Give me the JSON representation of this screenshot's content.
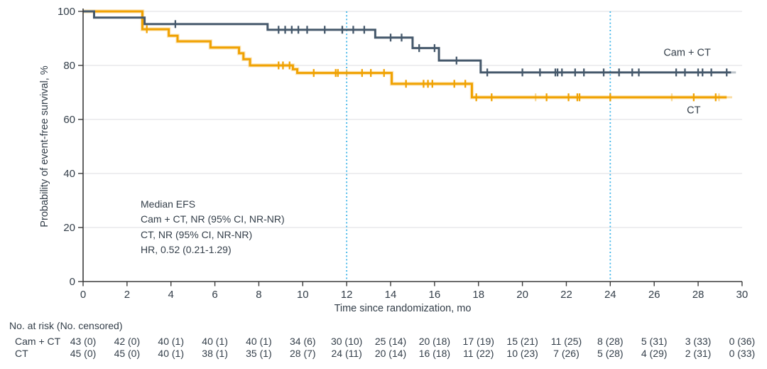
{
  "chart_data": {
    "type": "line",
    "variant": "kaplan_meier_step",
    "title": "",
    "xlabel": "Time since randomization, mo",
    "ylabel": "Probability of event-free survival, %",
    "xlim": [
      0,
      30
    ],
    "ylim": [
      0,
      100
    ],
    "xticks": [
      0,
      2,
      4,
      6,
      8,
      10,
      12,
      14,
      16,
      18,
      20,
      22,
      24,
      26,
      28,
      30
    ],
    "yticks": [
      0,
      20,
      40,
      60,
      80,
      100
    ],
    "grid": "horizontal",
    "reference_vlines": {
      "x": [
        12,
        24
      ],
      "style": "dotted",
      "color": "#3FB5E9"
    },
    "annotation": [
      "Median EFS",
      "Cam + CT, NR (95% CI, NR-NR)",
      "CT, NR (95% CI, NR-NR)",
      "HR, 0.52 (0.21-1.29)"
    ],
    "series": [
      {
        "name": "Cam + CT",
        "color": "#45586B",
        "halo": "",
        "label_pos": [
          27.5,
          83.5
        ],
        "steps": [
          [
            0,
            100
          ],
          [
            0.5,
            97.7
          ],
          [
            2.8,
            95.3
          ],
          [
            8.4,
            93.2
          ],
          [
            13.3,
            90.3
          ],
          [
            15.0,
            86.4
          ],
          [
            16.2,
            81.8
          ],
          [
            18.1,
            77.4
          ],
          [
            29.5,
            77.4
          ]
        ],
        "censors": [
          [
            4.2,
            95.3
          ],
          [
            8.9,
            93.2
          ],
          [
            9.2,
            93.2
          ],
          [
            9.5,
            93.2
          ],
          [
            9.8,
            93.2
          ],
          [
            10.2,
            93.2
          ],
          [
            11.0,
            93.2
          ],
          [
            11.8,
            93.2
          ],
          [
            12.3,
            93.2
          ],
          [
            12.8,
            93.2
          ],
          [
            14.0,
            90.3
          ],
          [
            14.5,
            90.3
          ],
          [
            15.3,
            86.4
          ],
          [
            16.0,
            86.4
          ],
          [
            17.0,
            81.8
          ],
          [
            18.4,
            77.4
          ],
          [
            20.0,
            77.4
          ],
          [
            20.8,
            77.4
          ],
          [
            21.5,
            77.4
          ],
          [
            21.6,
            77.4
          ],
          [
            21.8,
            77.4
          ],
          [
            22.4,
            77.4
          ],
          [
            22.8,
            77.4
          ],
          [
            23.7,
            77.4
          ],
          [
            24.4,
            77.4
          ],
          [
            25.0,
            77.4
          ],
          [
            25.3,
            77.4
          ],
          [
            27.0,
            77.4
          ],
          [
            27.4,
            77.4
          ],
          [
            28.0,
            77.4
          ],
          [
            28.2,
            77.4
          ],
          [
            28.6,
            77.4
          ],
          [
            29.3,
            77.4
          ]
        ],
        "faint_censors": [],
        "faint_tail": [
          29.5,
          29.72
        ]
      },
      {
        "name": "CT",
        "color": "#F0A202",
        "halo": "#F8C96E",
        "label_pos": [
          27.8,
          62.3
        ],
        "steps": [
          [
            0,
            100
          ],
          [
            2.7,
            93.4
          ],
          [
            3.9,
            91.0
          ],
          [
            4.3,
            88.9
          ],
          [
            5.8,
            86.6
          ],
          [
            7.1,
            84.5
          ],
          [
            7.3,
            82.3
          ],
          [
            7.6,
            80.0
          ],
          [
            9.55,
            78.6
          ],
          [
            9.75,
            77.2
          ],
          [
            14.05,
            73.2
          ],
          [
            17.7,
            68.2
          ],
          [
            29.3,
            68.2
          ]
        ],
        "censors": [
          [
            2.9,
            93.4
          ],
          [
            8.9,
            80.0
          ],
          [
            9.1,
            80.0
          ],
          [
            9.4,
            80.0
          ],
          [
            10.5,
            77.2
          ],
          [
            11.5,
            77.2
          ],
          [
            11.6,
            77.2
          ],
          [
            12.7,
            77.2
          ],
          [
            13.1,
            77.2
          ],
          [
            13.7,
            77.2
          ],
          [
            14.7,
            73.2
          ],
          [
            15.5,
            73.2
          ],
          [
            15.7,
            73.2
          ],
          [
            15.9,
            73.2
          ],
          [
            16.9,
            73.2
          ],
          [
            17.4,
            73.2
          ],
          [
            17.9,
            68.2
          ],
          [
            18.6,
            68.2
          ],
          [
            21.1,
            68.2
          ],
          [
            22.1,
            68.2
          ],
          [
            22.5,
            68.2
          ],
          [
            22.6,
            68.2
          ],
          [
            24.0,
            68.2
          ],
          [
            27.8,
            68.2
          ],
          [
            28.8,
            68.2
          ]
        ],
        "faint_censors": [
          [
            12.0,
            77.2
          ],
          [
            20.6,
            68.2
          ],
          [
            26.8,
            68.2
          ],
          [
            28.95,
            68.2
          ]
        ],
        "faint_tail": [
          29.3,
          29.55
        ]
      }
    ]
  },
  "risk_table": {
    "header": "No. at risk (No. censored)",
    "time_points": [
      0,
      2,
      4,
      6,
      8,
      10,
      12,
      14,
      16,
      18,
      20,
      22,
      24,
      26,
      28,
      30
    ],
    "rows": [
      {
        "name": "Cam + CT",
        "values": [
          "43 (0)",
          "42 (0)",
          "40 (1)",
          "40 (1)",
          "40 (1)",
          "34 (6)",
          "30 (10)",
          "25 (14)",
          "20 (18)",
          "17 (19)",
          "15 (21)",
          "11 (25)",
          "8 (28)",
          "5 (31)",
          "3 (33)",
          "0 (36)"
        ]
      },
      {
        "name": "CT",
        "values": [
          "45 (0)",
          "45 (0)",
          "40 (1)",
          "38 (1)",
          "35 (1)",
          "28 (7)",
          "24 (11)",
          "20 (14)",
          "16 (18)",
          "11 (22)",
          "10 (23)",
          "7 (26)",
          "5 (28)",
          "4 (29)",
          "2 (31)",
          "0 (33)"
        ]
      }
    ]
  },
  "colors": {
    "text": "#333E49",
    "axis": "#3B3B3B",
    "grid": "#E4E4E6",
    "cam_ct": "#45586B",
    "ct": "#F0A202",
    "vline": "#3FB5E9",
    "background": "#FFFFFF"
  }
}
